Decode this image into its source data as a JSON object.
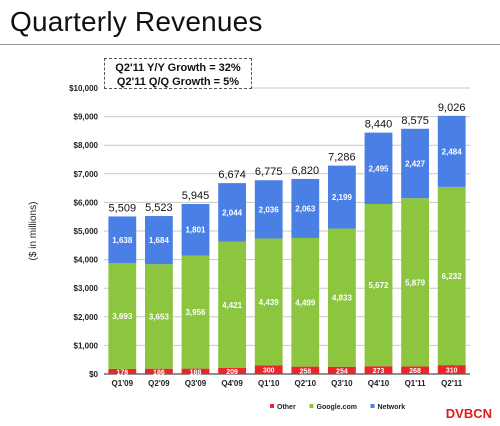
{
  "page": {
    "title": "Quarterly Revenues",
    "growth_lines": [
      "Q2'11 Y/Y Growth = 32%",
      "Q2'11 Q/Q Growth = 5%"
    ],
    "watermark": "DVBCN"
  },
  "chart_data": {
    "type": "bar",
    "stacked": true,
    "title": "Quarterly Revenues",
    "xlabel": "",
    "ylabel": "($ in millions)",
    "ylim": [
      0,
      10000
    ],
    "yticks": [
      0,
      1000,
      2000,
      3000,
      4000,
      5000,
      6000,
      7000,
      8000,
      9000,
      10000
    ],
    "ytick_labels": [
      "$0",
      "$1,000",
      "$2,000",
      "$3,000",
      "$4,000",
      "$5,000",
      "$6,000",
      "$7,000",
      "$8,000",
      "$9,000",
      "$10,000"
    ],
    "grid": true,
    "legend_position": "bottom-right",
    "categories": [
      "Q1'09",
      "Q2'09",
      "Q3'09",
      "Q4'09",
      "Q1'10",
      "Q2'10",
      "Q3'10",
      "Q4'10",
      "Q1'11",
      "Q2'11"
    ],
    "series": [
      {
        "name": "Other",
        "color": "#e8262c",
        "values": [
          178,
          186,
          188,
          209,
          300,
          258,
          254,
          273,
          268,
          310
        ]
      },
      {
        "name": "Google.com",
        "color": "#8cc63f",
        "values": [
          3693,
          3653,
          3956,
          4421,
          4439,
          4499,
          4833,
          5672,
          5879,
          6232
        ]
      },
      {
        "name": "Network",
        "color": "#4a7fe6",
        "values": [
          1638,
          1684,
          1801,
          2044,
          2036,
          2063,
          2199,
          2495,
          2427,
          2484
        ]
      }
    ],
    "totals": [
      5509,
      5523,
      5945,
      6674,
      6775,
      6820,
      7286,
      8440,
      8575,
      9026
    ],
    "data_labels": {
      "Other": [
        "178",
        "186",
        "188",
        "209",
        "300",
        "258",
        "254",
        "273",
        "268",
        "310"
      ],
      "Google.com": [
        "3,693",
        "3,653",
        "3,956",
        "4,421",
        "4,439",
        "4,499",
        "4,833",
        "5,672",
        "5,879",
        "6,232"
      ],
      "Network": [
        "1,638",
        "1,684",
        "1,801",
        "2,044",
        "2,036",
        "2,063",
        "2,199",
        "2,495",
        "2,427",
        "2,484"
      ]
    },
    "total_labels": [
      "5,509",
      "5,523",
      "5,945",
      "6,674",
      "6,775",
      "6,820",
      "7,286",
      "8,440",
      "8,575",
      "9,026"
    ]
  }
}
